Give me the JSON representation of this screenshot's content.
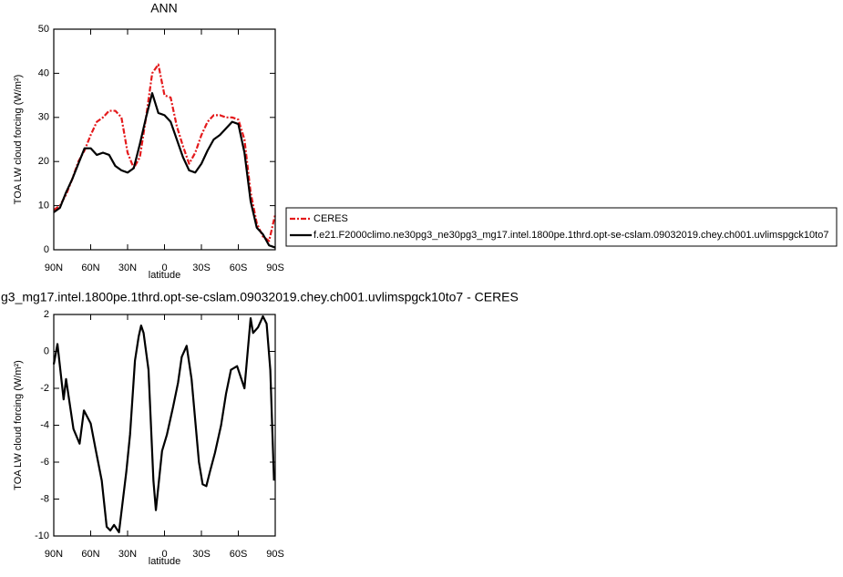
{
  "chart_data": [
    {
      "type": "line",
      "title": "ANN",
      "x_label": "latitude",
      "y_label": "TOA LW cloud forcing (W/m²)",
      "x": [
        90,
        85,
        80,
        75,
        70,
        65,
        60,
        55,
        50,
        45,
        40,
        35,
        30,
        25,
        20,
        15,
        10,
        5,
        0,
        -5,
        -10,
        -15,
        -20,
        -25,
        -30,
        -35,
        -40,
        -45,
        -50,
        -55,
        -60,
        -65,
        -70,
        -75,
        -80,
        -85,
        -90
      ],
      "series": [
        {
          "name": "CERES",
          "color": "#e41a1c",
          "linestyle": "dashed",
          "values": [
            9,
            10,
            12.5,
            16,
            20,
            22.5,
            26,
            29,
            30,
            31.5,
            31.5,
            30,
            22,
            18.5,
            21,
            30,
            40,
            42,
            35,
            34.5,
            28,
            23.5,
            19.5,
            22,
            26,
            29,
            30.5,
            30.5,
            30,
            30,
            29.5,
            25,
            13,
            6,
            3,
            2,
            8
          ]
        },
        {
          "name": "f.e21.F2000climo.ne30pg3_ne30pg3_mg17.intel.1800pe.1thrd.opt-se-cslam.09032019.chey.ch001.uvlimspgck10to7",
          "color": "#000000",
          "linestyle": "solid",
          "values": [
            8.5,
            9.5,
            13,
            16,
            19.5,
            23,
            23,
            21.5,
            22,
            21.5,
            19,
            18,
            17.5,
            18.5,
            24,
            30,
            35.5,
            31,
            30.5,
            29,
            25,
            21,
            18,
            17.5,
            19.5,
            22.5,
            25,
            26,
            27.5,
            29,
            28.5,
            22,
            11,
            5,
            3.5,
            1,
            0.5
          ]
        }
      ],
      "xlim": [
        90,
        -90
      ],
      "xticks": [
        {
          "value": 90,
          "label": "90N"
        },
        {
          "value": 60,
          "label": "60N"
        },
        {
          "value": 30,
          "label": "30N"
        },
        0,
        {
          "value": -30,
          "label": "30S"
        },
        {
          "value": -60,
          "label": "60S"
        },
        {
          "value": -90,
          "label": "90S"
        }
      ],
      "ylim": [
        0,
        50
      ],
      "yticks": [
        0,
        10,
        20,
        30,
        40,
        50
      ],
      "legend": "right"
    },
    {
      "type": "line",
      "title": "g3_mg17.intel.1800pe.1thrd.opt-se-cslam.09032019.chey.ch001.uvlimspgck10to7 - CERES",
      "x_label": "latitude",
      "y_label": "TOA LW cloud forcing (W/m²)",
      "x": [
        90,
        87,
        82,
        80,
        74,
        69,
        65.5,
        60,
        56,
        51,
        47,
        44,
        41,
        37,
        31,
        28,
        24,
        21,
        19,
        17,
        13,
        9,
        7,
        2,
        -2,
        -7,
        -11,
        -14,
        -18,
        -22,
        -28,
        -31,
        -34,
        -37,
        -41,
        -46,
        -50,
        -54,
        -59,
        -65,
        -70,
        -72,
        -76,
        -80,
        -83,
        -86,
        -89
      ],
      "values": [
        -0.7,
        0.4,
        -2.6,
        -1.5,
        -4.2,
        -5,
        -3.2,
        -3.9,
        -5.3,
        -7,
        -9.5,
        -9.7,
        -9.4,
        -9.8,
        -6.5,
        -4.5,
        -0.5,
        0.8,
        1.4,
        1,
        -1,
        -7,
        -8.6,
        -5.4,
        -4.5,
        -3,
        -1.7,
        -0.3,
        0.3,
        -1.5,
        -6,
        -7.2,
        -7.3,
        -6.5,
        -5.5,
        -4,
        -2.3,
        -1,
        -0.8,
        -2,
        1.8,
        1,
        1.3,
        1.9,
        1.5,
        -1,
        -7
      ],
      "color": "#000000",
      "xlim": [
        90,
        -90
      ],
      "xticks": [
        {
          "value": 90,
          "label": "90N"
        },
        {
          "value": 60,
          "label": "60N"
        },
        {
          "value": 30,
          "label": "30N"
        },
        0,
        {
          "value": -30,
          "label": "30S"
        },
        {
          "value": -60,
          "label": "60S"
        },
        {
          "value": -90,
          "label": "90S"
        }
      ],
      "ylim": [
        -10,
        2
      ],
      "yticks": [
        -10,
        -8,
        -6,
        -4,
        -2,
        0,
        2
      ]
    }
  ]
}
